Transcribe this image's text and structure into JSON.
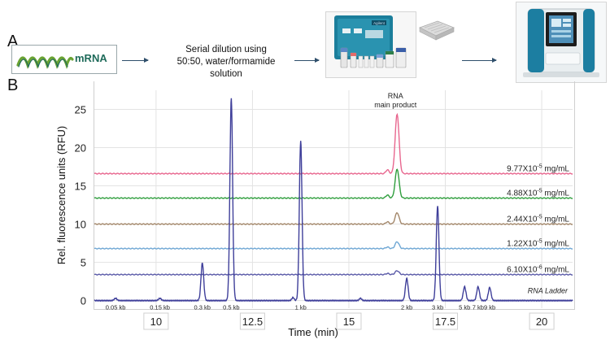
{
  "panel_a": {
    "letter": "A",
    "mrna_label": "mRNA",
    "dilution_lines": [
      "Serial dilution using",
      "50:50, water/formamide",
      "solution"
    ],
    "kit_brand": "Agilent"
  },
  "panel_b": {
    "letter": "B"
  },
  "colors": {
    "ladder": "#3f3f9a",
    "trace_9_77": "#e8678f",
    "trace_4_88": "#2f9e3d",
    "trace_2_44": "#a3876a",
    "trace_1_22": "#6fa7d4",
    "trace_6_10": "#5a5aa8",
    "teal": "#1f6b5a"
  },
  "chart_data": {
    "type": "line",
    "xlabel": "Time (min)",
    "ylabel": "Rel. fluorescence units (RFU)",
    "xlim": [
      8.4,
      20.8
    ],
    "ylim": [
      -1,
      27.5
    ],
    "x_ticks": [
      "10",
      "12.5",
      "15",
      "17.5",
      "20"
    ],
    "y_ticks": [
      "0",
      "5",
      "10",
      "15",
      "20",
      "25"
    ],
    "grid": true,
    "peak_annotation": {
      "line1": "RNA",
      "line2": "main product",
      "x": 16.25
    },
    "series": [
      {
        "name": "9.77X10",
        "exponent": "-5",
        "suffix": " mg/mL",
        "key": "trace_9_77",
        "baseline": 16.6,
        "main_peak": 7.8,
        "shoulder": 0.5
      },
      {
        "name": "4.88X10",
        "exponent": "-5",
        "suffix": " mg/mL",
        "key": "trace_4_88",
        "baseline": 13.4,
        "main_peak": 3.8,
        "shoulder": 0.4
      },
      {
        "name": "2.44X10",
        "exponent": "-5",
        "suffix": " mg/mL",
        "key": "trace_2_44",
        "baseline": 10.0,
        "main_peak": 1.5,
        "shoulder": 0.3
      },
      {
        "name": "1.22X10",
        "exponent": "-5",
        "suffix": " mg/mL",
        "key": "trace_1_22",
        "baseline": 6.8,
        "main_peak": 0.9,
        "shoulder": 0.2
      },
      {
        "name": "6.10X10",
        "exponent": "-6",
        "suffix": " mg/mL",
        "key": "trace_6_10",
        "baseline": 3.4,
        "main_peak": 0.5,
        "shoulder": 0.15
      }
    ],
    "ladder": {
      "name": "RNA Ladder",
      "baseline": 0.0,
      "peaks": [
        {
          "label": "0.05 kb",
          "x": 8.95,
          "height": 0.3
        },
        {
          "label": "0.15 kb",
          "x": 10.1,
          "height": 0.3
        },
        {
          "label": "0.3 kb",
          "x": 11.2,
          "height": 4.9
        },
        {
          "label": "0.5 kb",
          "x": 11.95,
          "height": 26.5
        },
        {
          "label": "1 kb",
          "x": 13.75,
          "height": 20.9
        },
        {
          "label": "2 kb",
          "x": 16.5,
          "height": 2.9
        },
        {
          "label": "3 kb",
          "x": 17.3,
          "height": 12.4
        },
        {
          "label": "5 kb",
          "x": 18.0,
          "height": 1.8
        },
        {
          "label": "7 kb",
          "x": 18.35,
          "height": 1.8
        },
        {
          "label": "9 kb",
          "x": 18.65,
          "height": 1.7
        }
      ]
    }
  }
}
